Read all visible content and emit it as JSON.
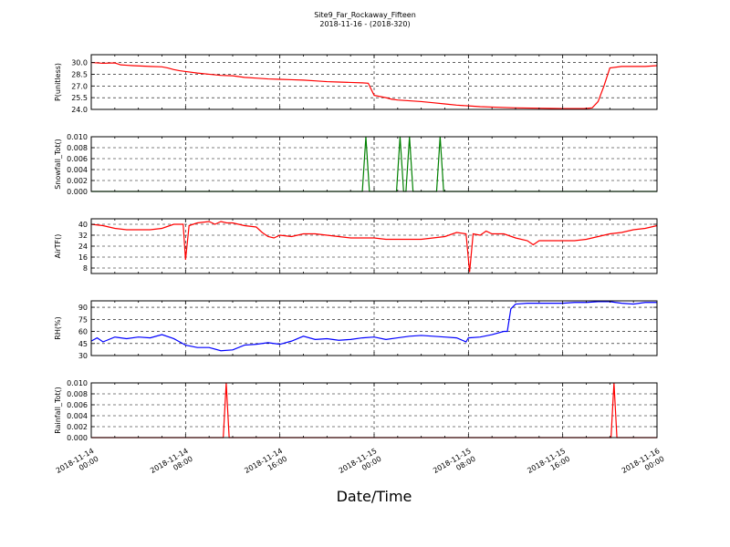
{
  "title": "Site9_Far_Rockaway_Fifteen",
  "subtitle": "2018-11-16 - (2018-320)",
  "xlabel": "Date/Time",
  "x_ticks": [
    {
      "l1": "2018-11-14",
      "l2": "00:00"
    },
    {
      "l1": "2018-11-14",
      "l2": "08:00"
    },
    {
      "l1": "2018-11-14",
      "l2": "16:00"
    },
    {
      "l1": "2018-11-15",
      "l2": "00:00"
    },
    {
      "l1": "2018-11-15",
      "l2": "08:00"
    },
    {
      "l1": "2018-11-15",
      "l2": "16:00"
    },
    {
      "l1": "2018-11-16",
      "l2": "00:00"
    }
  ],
  "chart_data": [
    {
      "type": "line",
      "ylabel": "P(unitless)",
      "ylim": [
        24.0,
        31.0
      ],
      "yticks": [
        "24.0",
        "25.5",
        "27.0",
        "28.5",
        "30.0"
      ],
      "ytick_values": [
        24.0,
        25.5,
        27.0,
        28.5,
        30.0
      ],
      "xlim": [
        0,
        48
      ],
      "grid": true,
      "color": "#ff0000",
      "x": [
        0,
        1,
        2,
        2.5,
        3,
        3.5,
        5,
        6,
        6.5,
        7,
        7.5,
        8,
        9,
        10,
        11,
        12,
        13,
        14,
        15,
        16,
        17,
        18,
        19,
        20,
        21,
        22,
        23,
        23.5,
        24,
        25,
        25.5,
        26,
        27,
        28,
        29,
        30,
        31,
        32,
        33,
        34,
        36,
        38,
        40,
        41,
        41.8,
        42.5,
        43,
        43.5,
        44,
        45,
        46,
        47,
        48
      ],
      "values": [
        30.0,
        29.9,
        29.95,
        29.7,
        29.65,
        29.6,
        29.5,
        29.45,
        29.3,
        29.1,
        28.95,
        28.85,
        28.65,
        28.5,
        28.35,
        28.3,
        28.1,
        28.0,
        27.9,
        27.85,
        27.8,
        27.75,
        27.65,
        27.55,
        27.5,
        27.45,
        27.4,
        27.35,
        25.8,
        25.5,
        25.3,
        25.2,
        25.1,
        25.0,
        24.85,
        24.7,
        24.55,
        24.45,
        24.35,
        24.3,
        24.2,
        24.15,
        24.1,
        24.1,
        24.1,
        24.2,
        25.0,
        27.0,
        29.3,
        29.5,
        29.5,
        29.5,
        29.6
      ]
    },
    {
      "type": "line",
      "ylabel": "Snowfall_Tot()",
      "ylim": [
        0.0,
        0.01
      ],
      "yticks": [
        "0.000",
        "0.002",
        "0.004",
        "0.006",
        "0.008",
        "0.010"
      ],
      "ytick_values": [
        0.0,
        0.002,
        0.004,
        0.006,
        0.008,
        0.01
      ],
      "xlim": [
        0,
        48
      ],
      "grid": true,
      "color": "#008000",
      "x": [
        0,
        23,
        23.3,
        23.6,
        25.9,
        26.2,
        26.5,
        26.7,
        27.0,
        27.3,
        29.3,
        29.6,
        29.9,
        48
      ],
      "values": [
        0,
        0,
        0.01,
        0,
        0,
        0.01,
        0,
        0,
        0.01,
        0,
        0,
        0.01,
        0,
        0
      ]
    },
    {
      "type": "line",
      "ylabel": "AirTF()",
      "ylim": [
        4,
        44
      ],
      "yticks": [
        "8",
        "16",
        "24",
        "32",
        "40"
      ],
      "ytick_values": [
        8,
        16,
        24,
        32,
        40
      ],
      "xlim": [
        0,
        48
      ],
      "grid": true,
      "color": "#ff0000",
      "x": [
        0,
        1,
        2,
        3,
        4,
        5,
        6,
        7,
        7.8,
        8.0,
        8.3,
        9,
        10,
        10.5,
        11,
        11.5,
        12,
        13,
        14,
        14.5,
        15,
        15.5,
        16,
        17,
        18,
        19,
        20,
        21,
        22,
        23,
        24,
        25,
        26,
        27,
        28,
        29,
        30,
        31,
        31.8,
        32.1,
        32.4,
        33,
        33.5,
        34,
        35,
        36,
        37,
        37.5,
        38,
        39,
        40,
        41,
        42,
        43,
        44,
        45,
        46,
        47,
        48
      ],
      "values": [
        40,
        39,
        37,
        36,
        36,
        36,
        37,
        40,
        40,
        14,
        39,
        41,
        42,
        40,
        42,
        41,
        41,
        39,
        38,
        34,
        31,
        30,
        32,
        31,
        33,
        33,
        32,
        31,
        30,
        30,
        30,
        29,
        29,
        29,
        29,
        30,
        31,
        34,
        33,
        5,
        33,
        32,
        35,
        33,
        33,
        30,
        28,
        25,
        28,
        28,
        28,
        28,
        29,
        31,
        33,
        34,
        36,
        37,
        39
      ]
    },
    {
      "type": "line",
      "ylabel": "RH(%)",
      "ylim": [
        30,
        98
      ],
      "yticks": [
        "30",
        "45",
        "60",
        "75",
        "90"
      ],
      "ytick_values": [
        30,
        45,
        60,
        75,
        90
      ],
      "xlim": [
        0,
        48
      ],
      "grid": true,
      "color": "#0000ff",
      "x": [
        0,
        0.5,
        1,
        2,
        3,
        4,
        5,
        6,
        7,
        7.5,
        8,
        9,
        10,
        11,
        12,
        13,
        14,
        15,
        16,
        17,
        18,
        19,
        20,
        21,
        22,
        23,
        24,
        25,
        26,
        27,
        28,
        29,
        30,
        31,
        31.8,
        32,
        33,
        34,
        35,
        35.3,
        35.6,
        36,
        37,
        38,
        39,
        40,
        41,
        42,
        43,
        44,
        45,
        46,
        47,
        48
      ],
      "values": [
        48,
        52,
        47,
        53,
        51,
        53,
        52,
        56,
        51,
        47,
        43,
        40,
        40,
        36,
        37,
        43,
        44,
        46,
        44,
        48,
        54,
        50,
        51,
        49,
        50,
        52,
        53,
        50,
        52,
        54,
        55,
        54,
        53,
        52,
        47,
        52,
        53,
        56,
        60,
        60,
        88,
        94,
        95,
        95,
        95,
        95,
        96,
        96,
        97,
        97,
        95,
        94,
        96,
        96
      ]
    },
    {
      "type": "line",
      "ylabel": "Rainfall_Tot()",
      "ylim": [
        0.0,
        0.01
      ],
      "yticks": [
        "0.000",
        "0.002",
        "0.004",
        "0.006",
        "0.008",
        "0.010"
      ],
      "ytick_values": [
        0.0,
        0.002,
        0.004,
        0.006,
        0.008,
        0.01
      ],
      "xlim": [
        0,
        48
      ],
      "grid": true,
      "color": "#ff0000",
      "x": [
        0,
        11.2,
        11.45,
        11.7,
        44.1,
        44.35,
        44.6,
        48
      ],
      "values": [
        0,
        0,
        0.01,
        0,
        0,
        0.01,
        0,
        0
      ]
    }
  ]
}
